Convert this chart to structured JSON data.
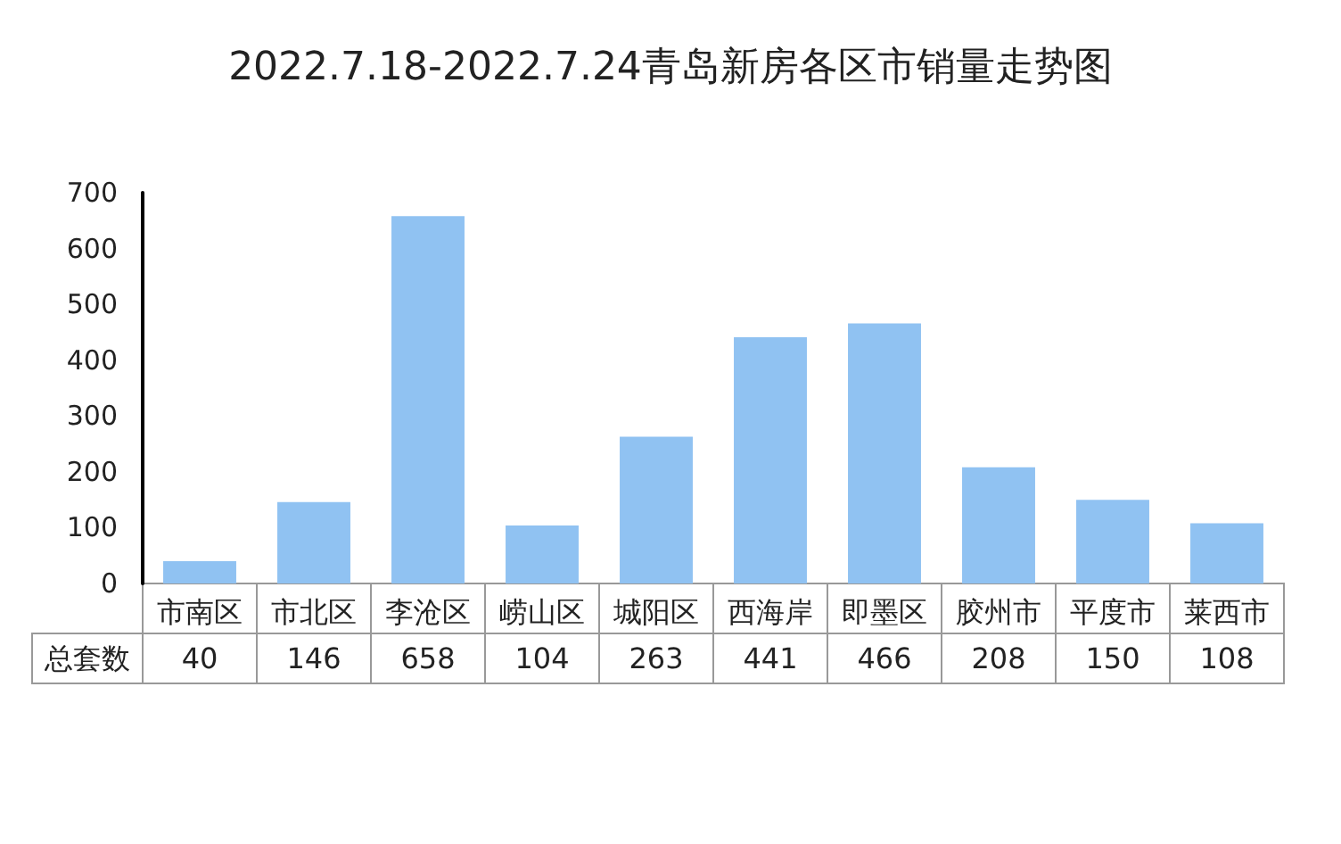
{
  "chart_data": {
    "type": "bar",
    "title": "2022.7.18-2022.7.24青岛新房各区市销量走势图",
    "categories": [
      "市南区",
      "市北区",
      "李沧区",
      "崂山区",
      "城阳区",
      "西海岸",
      "即墨区",
      "胶州市",
      "平度市",
      "莱西市"
    ],
    "series": [
      {
        "name": "总套数",
        "color": "#90c2f2",
        "values": [
          40,
          146,
          658,
          104,
          263,
          441,
          466,
          208,
          150,
          108
        ]
      }
    ],
    "ylim": [
      0,
      700
    ],
    "yticks": [
      0,
      100,
      200,
      300,
      400,
      500,
      600,
      700
    ],
    "grid": false,
    "legend": false,
    "data_labels": true
  }
}
